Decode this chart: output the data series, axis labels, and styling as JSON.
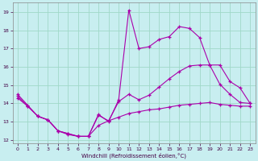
{
  "xlabel": "Windchill (Refroidissement éolien,°C)",
  "xlim": [
    -0.5,
    23.5
  ],
  "ylim": [
    11.8,
    19.5
  ],
  "yticks": [
    12,
    13,
    14,
    15,
    16,
    17,
    18,
    19
  ],
  "xticks": [
    0,
    1,
    2,
    3,
    4,
    5,
    6,
    7,
    8,
    9,
    10,
    11,
    12,
    13,
    14,
    15,
    16,
    17,
    18,
    19,
    20,
    21,
    22,
    23
  ],
  "background_color": "#c8eef0",
  "grid_color": "#a0d8c8",
  "line_color": "#aa00aa",
  "line1_x": [
    0,
    1,
    2,
    3,
    4,
    5,
    6,
    7,
    8,
    9,
    10,
    11,
    12,
    13,
    14,
    15,
    16,
    17,
    18,
    19,
    20,
    21,
    22,
    23
  ],
  "line1_y": [
    14.5,
    13.9,
    13.3,
    13.1,
    12.5,
    12.3,
    12.2,
    12.2,
    13.4,
    13.0,
    14.2,
    19.1,
    17.0,
    17.1,
    17.5,
    17.65,
    18.2,
    18.1,
    17.6,
    16.1,
    16.1,
    15.2,
    14.85,
    14.0
  ],
  "line2_x": [
    0,
    1,
    2,
    3,
    4,
    5,
    6,
    7,
    8,
    9,
    10,
    11,
    12,
    13,
    14,
    15,
    16,
    17,
    18,
    19,
    20,
    21,
    22,
    23
  ],
  "line2_y": [
    14.4,
    13.85,
    13.3,
    13.1,
    12.5,
    12.35,
    12.2,
    12.2,
    13.35,
    13.05,
    14.1,
    14.5,
    14.2,
    14.45,
    14.9,
    15.35,
    15.75,
    16.05,
    16.1,
    16.1,
    15.05,
    14.5,
    14.05,
    14.0
  ],
  "line3_x": [
    0,
    1,
    2,
    3,
    4,
    5,
    6,
    7,
    8,
    9,
    10,
    11,
    12,
    13,
    14,
    15,
    16,
    17,
    18,
    19,
    20,
    21,
    22,
    23
  ],
  "line3_y": [
    14.3,
    13.85,
    13.3,
    13.1,
    12.5,
    12.35,
    12.2,
    12.2,
    12.8,
    13.05,
    13.25,
    13.45,
    13.55,
    13.65,
    13.7,
    13.8,
    13.9,
    13.95,
    14.0,
    14.05,
    13.95,
    13.9,
    13.85,
    13.85
  ]
}
